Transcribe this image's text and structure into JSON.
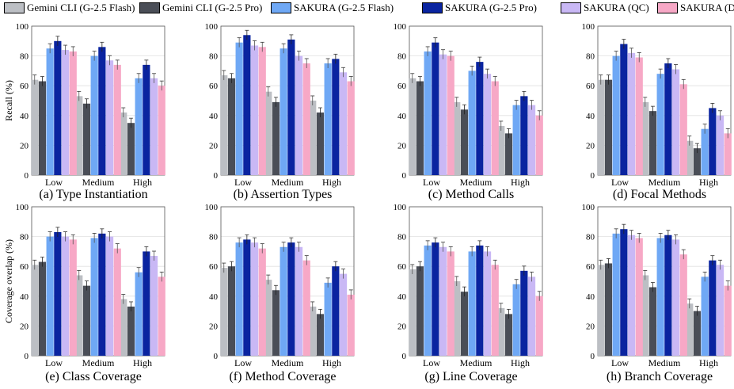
{
  "legend": [
    {
      "label": "Gemini CLI (G-2.5 Flash)",
      "color": "#bcbfc4"
    },
    {
      "label": "Gemini CLI (G-2.5 Pro)",
      "color": "#4a4e57"
    },
    {
      "label": "SAKURA (G-2.5 Flash)",
      "color": "#6fa8f5"
    },
    {
      "label": "SAKURA (G-2.5 Pro)",
      "color": "#0a24a0"
    },
    {
      "label": "SAKURA (QC)",
      "color": "#c9b8f5"
    },
    {
      "label": "SAKURA (DS)",
      "color": "#f7a8c6"
    }
  ],
  "chart_data": [
    {
      "type": "bar",
      "title": "(a) Type Instantiation",
      "ylabel": "Recall (%)",
      "ylim": [
        0,
        100
      ],
      "categories": [
        "Low",
        "Medium",
        "High"
      ],
      "series": [
        {
          "name": "Gemini CLI (G-2.5 Flash)",
          "values": [
            64,
            53,
            42
          ]
        },
        {
          "name": "Gemini CLI (G-2.5 Pro)",
          "values": [
            63,
            48,
            35
          ]
        },
        {
          "name": "SAKURA (G-2.5 Flash)",
          "values": [
            85,
            80,
            65
          ]
        },
        {
          "name": "SAKURA (G-2.5 Pro)",
          "values": [
            90,
            86,
            74
          ]
        },
        {
          "name": "SAKURA (QC)",
          "values": [
            84,
            77,
            65
          ]
        },
        {
          "name": "SAKURA (DS)",
          "values": [
            83,
            74,
            60
          ]
        }
      ]
    },
    {
      "type": "bar",
      "title": "(b) Assertion Types",
      "ylabel": "",
      "ylim": [
        0,
        100
      ],
      "categories": [
        "Low",
        "Medium",
        "High"
      ],
      "series": [
        {
          "name": "Gemini CLI (G-2.5 Flash)",
          "values": [
            67,
            56,
            50
          ]
        },
        {
          "name": "Gemini CLI (G-2.5 Pro)",
          "values": [
            65,
            49,
            42
          ]
        },
        {
          "name": "SAKURA (G-2.5 Flash)",
          "values": [
            89,
            85,
            75
          ]
        },
        {
          "name": "SAKURA (G-2.5 Pro)",
          "values": [
            94,
            91,
            78
          ]
        },
        {
          "name": "SAKURA (QC)",
          "values": [
            87,
            80,
            69
          ]
        },
        {
          "name": "SAKURA (DS)",
          "values": [
            86,
            75,
            63
          ]
        }
      ]
    },
    {
      "type": "bar",
      "title": "(c) Method Calls",
      "ylabel": "",
      "ylim": [
        0,
        100
      ],
      "categories": [
        "Low",
        "Medium",
        "High"
      ],
      "series": [
        {
          "name": "Gemini CLI (G-2.5 Flash)",
          "values": [
            65,
            49,
            33
          ]
        },
        {
          "name": "Gemini CLI (G-2.5 Pro)",
          "values": [
            63,
            44,
            28
          ]
        },
        {
          "name": "SAKURA (G-2.5 Flash)",
          "values": [
            83,
            70,
            47
          ]
        },
        {
          "name": "SAKURA (G-2.5 Pro)",
          "values": [
            89,
            76,
            53
          ]
        },
        {
          "name": "SAKURA (QC)",
          "values": [
            81,
            68,
            47
          ]
        },
        {
          "name": "SAKURA (DS)",
          "values": [
            80,
            63,
            40
          ]
        }
      ]
    },
    {
      "type": "bar",
      "title": "(d) Focal Methods",
      "ylabel": "",
      "ylim": [
        0,
        100
      ],
      "categories": [
        "Low",
        "Medium",
        "High"
      ],
      "series": [
        {
          "name": "Gemini CLI (G-2.5 Flash)",
          "values": [
            64,
            49,
            23
          ]
        },
        {
          "name": "Gemini CLI (G-2.5 Pro)",
          "values": [
            64,
            43,
            18
          ]
        },
        {
          "name": "SAKURA (G-2.5 Flash)",
          "values": [
            80,
            68,
            31
          ]
        },
        {
          "name": "SAKURA (G-2.5 Pro)",
          "values": [
            88,
            75,
            45
          ]
        },
        {
          "name": "SAKURA (QC)",
          "values": [
            82,
            71,
            40
          ]
        },
        {
          "name": "SAKURA (DS)",
          "values": [
            79,
            61,
            28
          ]
        }
      ]
    },
    {
      "type": "bar",
      "title": "(e) Class Coverage",
      "ylabel": "Coverage overlap (%)",
      "ylim": [
        0,
        100
      ],
      "categories": [
        "Low",
        "Medium",
        "High"
      ],
      "series": [
        {
          "name": "Gemini CLI (G-2.5 Flash)",
          "values": [
            61,
            54,
            38
          ]
        },
        {
          "name": "Gemini CLI (G-2.5 Pro)",
          "values": [
            63,
            47,
            33
          ]
        },
        {
          "name": "SAKURA (G-2.5 Flash)",
          "values": [
            80,
            79,
            56
          ]
        },
        {
          "name": "SAKURA (G-2.5 Pro)",
          "values": [
            83,
            82,
            70
          ]
        },
        {
          "name": "SAKURA (QC)",
          "values": [
            80,
            80,
            67
          ]
        },
        {
          "name": "SAKURA (DS)",
          "values": [
            78,
            72,
            53
          ]
        }
      ]
    },
    {
      "type": "bar",
      "title": "(f) Method Coverage",
      "ylabel": "",
      "ylim": [
        0,
        100
      ],
      "categories": [
        "Low",
        "Medium",
        "High"
      ],
      "series": [
        {
          "name": "Gemini CLI (G-2.5 Flash)",
          "values": [
            59,
            51,
            33
          ]
        },
        {
          "name": "Gemini CLI (G-2.5 Pro)",
          "values": [
            60,
            44,
            28
          ]
        },
        {
          "name": "SAKURA (G-2.5 Flash)",
          "values": [
            76,
            73,
            49
          ]
        },
        {
          "name": "SAKURA (G-2.5 Pro)",
          "values": [
            78,
            76,
            60
          ]
        },
        {
          "name": "SAKURA (QC)",
          "values": [
            76,
            73,
            55
          ]
        },
        {
          "name": "SAKURA (DS)",
          "values": [
            72,
            64,
            41
          ]
        }
      ]
    },
    {
      "type": "bar",
      "title": "(g) Line Coverage",
      "ylabel": "",
      "ylim": [
        0,
        100
      ],
      "categories": [
        "Low",
        "Medium",
        "High"
      ],
      "series": [
        {
          "name": "Gemini CLI (G-2.5 Flash)",
          "values": [
            58,
            50,
            32
          ]
        },
        {
          "name": "Gemini CLI (G-2.5 Pro)",
          "values": [
            60,
            43,
            28
          ]
        },
        {
          "name": "SAKURA (G-2.5 Flash)",
          "values": [
            74,
            70,
            48
          ]
        },
        {
          "name": "SAKURA (G-2.5 Pro)",
          "values": [
            76,
            74,
            57
          ]
        },
        {
          "name": "SAKURA (QC)",
          "values": [
            73,
            70,
            53
          ]
        },
        {
          "name": "SAKURA (DS)",
          "values": [
            70,
            61,
            40
          ]
        }
      ]
    },
    {
      "type": "bar",
      "title": "(h) Branch Coverage",
      "ylabel": "",
      "ylim": [
        0,
        100
      ],
      "categories": [
        "Low",
        "Medium",
        "High"
      ],
      "series": [
        {
          "name": "Gemini CLI (G-2.5 Flash)",
          "values": [
            61,
            54,
            35
          ]
        },
        {
          "name": "Gemini CLI (G-2.5 Pro)",
          "values": [
            62,
            46,
            30
          ]
        },
        {
          "name": "SAKURA (G-2.5 Flash)",
          "values": [
            82,
            79,
            53
          ]
        },
        {
          "name": "SAKURA (G-2.5 Pro)",
          "values": [
            85,
            81,
            64
          ]
        },
        {
          "name": "SAKURA (QC)",
          "values": [
            81,
            78,
            61
          ]
        },
        {
          "name": "SAKURA (DS)",
          "values": [
            79,
            68,
            47
          ]
        }
      ]
    }
  ]
}
